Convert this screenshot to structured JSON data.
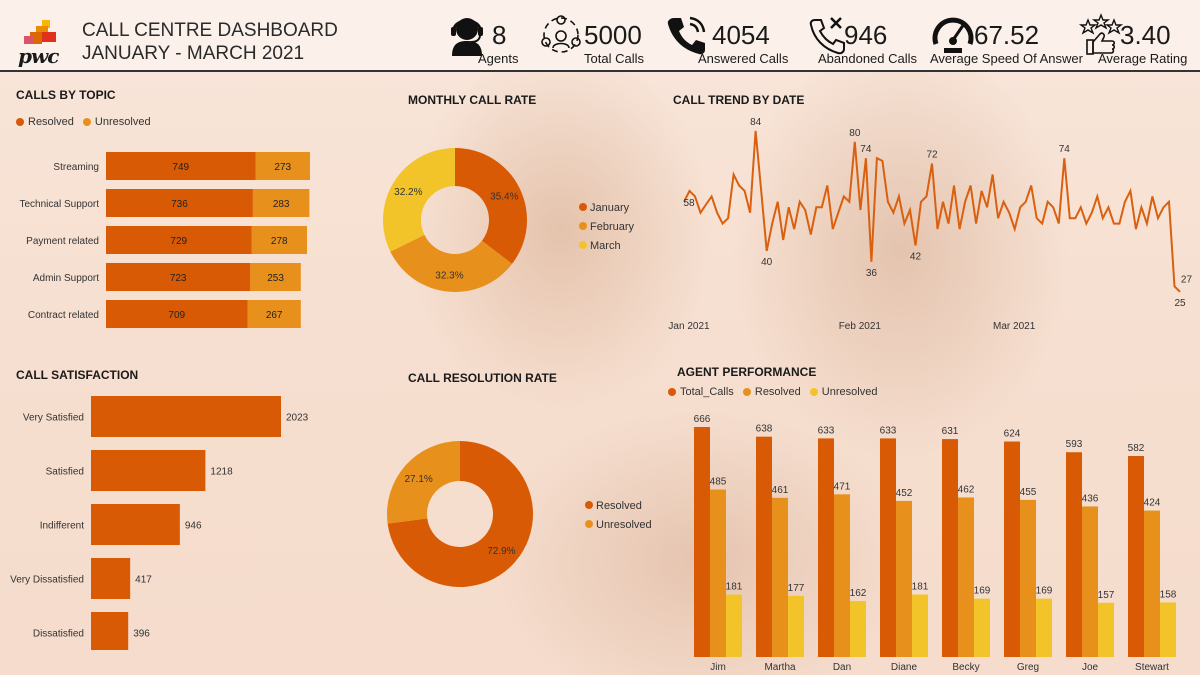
{
  "header": {
    "logo_text": "pwc",
    "title_line1": "CALL CENTRE DASHBOARD",
    "title_line2": "JANUARY - MARCH 2021"
  },
  "kpis": [
    {
      "value": "8",
      "label": "Agents",
      "icon": "agent-headset-icon"
    },
    {
      "value": "5000",
      "label": "Total Calls",
      "icon": "people-network-icon"
    },
    {
      "value": "4054",
      "label": "Answered Calls",
      "icon": "phone-icon"
    },
    {
      "value": "946",
      "label": "Abandoned Calls",
      "icon": "phone-missed-icon"
    },
    {
      "value": "67.52",
      "label": "Average Speed Of Answer",
      "icon": "speedometer-icon"
    },
    {
      "value": "3.40",
      "label": "Average Rating",
      "icon": "thumbs-up-stars-icon"
    }
  ],
  "colors": {
    "resolved": "#d95a04",
    "unresolved": "#e8901c",
    "third": "#f3c42a",
    "line": "#d9600f"
  },
  "chart_data": [
    {
      "id": "calls_by_topic",
      "type": "bar",
      "orientation": "horizontal",
      "stacked": true,
      "title": "CALLS BY TOPIC",
      "legend": "top-left",
      "categories": [
        "Streaming",
        "Technical Support",
        "Payment related",
        "Admin Support",
        "Contract related"
      ],
      "series": [
        {
          "name": "Resolved",
          "values": [
            749,
            736,
            729,
            723,
            709
          ]
        },
        {
          "name": "Unresolved",
          "values": [
            273,
            283,
            278,
            253,
            267
          ]
        }
      ]
    },
    {
      "id": "monthly_call_rate",
      "type": "pie",
      "donut": true,
      "title": "MONTHLY CALL RATE",
      "legend": "right",
      "labels": [
        "January",
        "February",
        "March"
      ],
      "values": [
        35.4,
        32.3,
        32.2
      ],
      "value_labels": [
        "35.4%",
        "32.3%",
        "32.2%"
      ]
    },
    {
      "id": "call_trend_by_date",
      "type": "line",
      "title": "CALL TREND BY DATE",
      "x_ticks": [
        "Jan 2021",
        "Feb 2021",
        "Mar 2021"
      ],
      "x_start": "2021-01-01",
      "x_end": "2021-03-31",
      "y": [
        58,
        62,
        60,
        54,
        57,
        60,
        54,
        50,
        52,
        68,
        64,
        62,
        54,
        84,
        62,
        40,
        50,
        58,
        44,
        56,
        48,
        58,
        55,
        46,
        56,
        56,
        64,
        48,
        54,
        60,
        58,
        80,
        55,
        74,
        36,
        74,
        73,
        58,
        54,
        60,
        50,
        55,
        42,
        58,
        60,
        72,
        48,
        58,
        50,
        64,
        48,
        58,
        64,
        50,
        62,
        56,
        68,
        52,
        58,
        54,
        48,
        56,
        58,
        64,
        52,
        50,
        58,
        56,
        50,
        74,
        52,
        52,
        56,
        50,
        54,
        60,
        52,
        56,
        50,
        50,
        58,
        62,
        48,
        56,
        50,
        60,
        52,
        56,
        58,
        27,
        25
      ],
      "annotations": [
        {
          "label": "58",
          "index": 0
        },
        {
          "label": "84",
          "index": 13
        },
        {
          "label": "40",
          "index": 15
        },
        {
          "label": "80",
          "index": 31
        },
        {
          "label": "74",
          "index": 33
        },
        {
          "label": "36",
          "index": 34
        },
        {
          "label": "42",
          "index": 42
        },
        {
          "label": "72",
          "index": 45
        },
        {
          "label": "74",
          "index": 69
        },
        {
          "label": "25",
          "index": 90
        },
        {
          "label": "27",
          "index": 89
        }
      ]
    },
    {
      "id": "call_satisfaction",
      "type": "bar",
      "orientation": "horizontal",
      "title": "CALL SATISFACTION",
      "categories": [
        "Very Satisfied",
        "Satisfied",
        "Indifferent",
        "Very Dissatisfied",
        "Dissatisfied"
      ],
      "values": [
        2023,
        1218,
        946,
        417,
        396
      ]
    },
    {
      "id": "call_resolution_rate",
      "type": "pie",
      "donut": true,
      "title": "CALL RESOLUTION RATE",
      "legend": "right",
      "labels": [
        "Resolved",
        "Unresolved"
      ],
      "values": [
        72.9,
        27.1
      ],
      "value_labels": [
        "72.9%",
        "27.1%"
      ]
    },
    {
      "id": "agent_performance",
      "type": "bar",
      "orientation": "vertical",
      "title": "AGENT PERFORMANCE",
      "legend": "top-left",
      "categories": [
        "Jim",
        "Martha",
        "Dan",
        "Diane",
        "Becky",
        "Greg",
        "Joe",
        "Stewart"
      ],
      "series": [
        {
          "name": "Total_Calls",
          "values": [
            666,
            638,
            633,
            633,
            631,
            624,
            593,
            582
          ]
        },
        {
          "name": "Resolved",
          "values": [
            485,
            461,
            471,
            452,
            462,
            455,
            436,
            424
          ]
        },
        {
          "name": "Unresolved",
          "values": [
            181,
            177,
            162,
            181,
            169,
            169,
            157,
            158
          ]
        }
      ]
    }
  ]
}
